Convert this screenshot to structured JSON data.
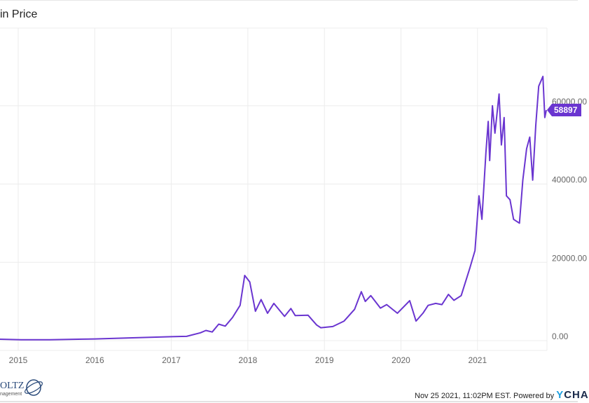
{
  "title": "in Price",
  "footer": {
    "timestamp": "Nov 25 2021, 11:02PM EST. Powered by",
    "brand_logo": "YCHA",
    "left_logo_name": "OLTZ",
    "left_logo_sub": "nagement"
  },
  "colors": {
    "line": "#6a35d0",
    "grid": "#ececec",
    "label_bg": "#6a35d0"
  },
  "chart_data": {
    "type": "line",
    "title": "in Price",
    "xlabel": "",
    "ylabel": "",
    "x_ticks": [
      "2015",
      "2016",
      "2017",
      "2018",
      "2019",
      "2020",
      "2021"
    ],
    "y_ticks": [
      "0.00",
      "20000.00",
      "40000.00",
      "60000.00"
    ],
    "y_tick_values": [
      0,
      20000,
      40000,
      60000
    ],
    "ylim": [
      -2000,
      80000
    ],
    "xlim": [
      "2014-10-01",
      "2021-11-25"
    ],
    "grid": true,
    "last_value_label": "58897",
    "series": [
      {
        "points": [
          [
            "2014-10-01",
            380
          ],
          [
            "2015-01-15",
            220
          ],
          [
            "2015-06-01",
            240
          ],
          [
            "2015-11-05",
            380
          ],
          [
            "2016-01-01",
            430
          ],
          [
            "2016-06-15",
            700
          ],
          [
            "2017-01-01",
            1000
          ],
          [
            "2017-03-15",
            1100
          ],
          [
            "2017-05-20",
            2000
          ],
          [
            "2017-06-15",
            2600
          ],
          [
            "2017-07-15",
            2200
          ],
          [
            "2017-08-15",
            4200
          ],
          [
            "2017-09-15",
            3700
          ],
          [
            "2017-10-20",
            5900
          ],
          [
            "2017-11-25",
            9000
          ],
          [
            "2017-12-17",
            16650
          ],
          [
            "2018-01-10",
            15000
          ],
          [
            "2018-02-06",
            7500
          ],
          [
            "2018-03-05",
            10500
          ],
          [
            "2018-04-05",
            7000
          ],
          [
            "2018-05-05",
            9500
          ],
          [
            "2018-06-25",
            6200
          ],
          [
            "2018-07-25",
            8200
          ],
          [
            "2018-08-15",
            6400
          ],
          [
            "2018-10-15",
            6500
          ],
          [
            "2018-11-25",
            4000
          ],
          [
            "2018-12-15",
            3300
          ],
          [
            "2019-02-10",
            3600
          ],
          [
            "2019-04-05",
            5000
          ],
          [
            "2019-05-25",
            8000
          ],
          [
            "2019-06-26",
            12500
          ],
          [
            "2019-07-15",
            10000
          ],
          [
            "2019-08-10",
            11500
          ],
          [
            "2019-09-25",
            8300
          ],
          [
            "2019-10-25",
            9200
          ],
          [
            "2019-12-15",
            7000
          ],
          [
            "2020-02-12",
            10200
          ],
          [
            "2020-03-13",
            5000
          ],
          [
            "2020-04-15",
            7000
          ],
          [
            "2020-05-10",
            9000
          ],
          [
            "2020-06-15",
            9500
          ],
          [
            "2020-07-15",
            9200
          ],
          [
            "2020-08-15",
            11800
          ],
          [
            "2020-09-10",
            10300
          ],
          [
            "2020-10-15",
            11500
          ],
          [
            "2020-11-25",
            18500
          ],
          [
            "2020-12-20",
            23000
          ],
          [
            "2021-01-08",
            37000
          ],
          [
            "2021-01-22",
            31000
          ],
          [
            "2021-02-10",
            48000
          ],
          [
            "2021-02-21",
            56000
          ],
          [
            "2021-02-28",
            46000
          ],
          [
            "2021-03-13",
            60000
          ],
          [
            "2021-03-25",
            53000
          ],
          [
            "2021-04-14",
            63000
          ],
          [
            "2021-04-25",
            50000
          ],
          [
            "2021-05-08",
            57000
          ],
          [
            "2021-05-19",
            37000
          ],
          [
            "2021-06-05",
            36000
          ],
          [
            "2021-06-22",
            31000
          ],
          [
            "2021-07-20",
            30000
          ],
          [
            "2021-08-05",
            41000
          ],
          [
            "2021-08-23",
            49000
          ],
          [
            "2021-09-07",
            52000
          ],
          [
            "2021-09-21",
            41000
          ],
          [
            "2021-10-06",
            55000
          ],
          [
            "2021-10-20",
            65000
          ],
          [
            "2021-11-09",
            67500
          ],
          [
            "2021-11-18",
            57000
          ],
          [
            "2021-11-25",
            58897
          ]
        ]
      }
    ]
  }
}
